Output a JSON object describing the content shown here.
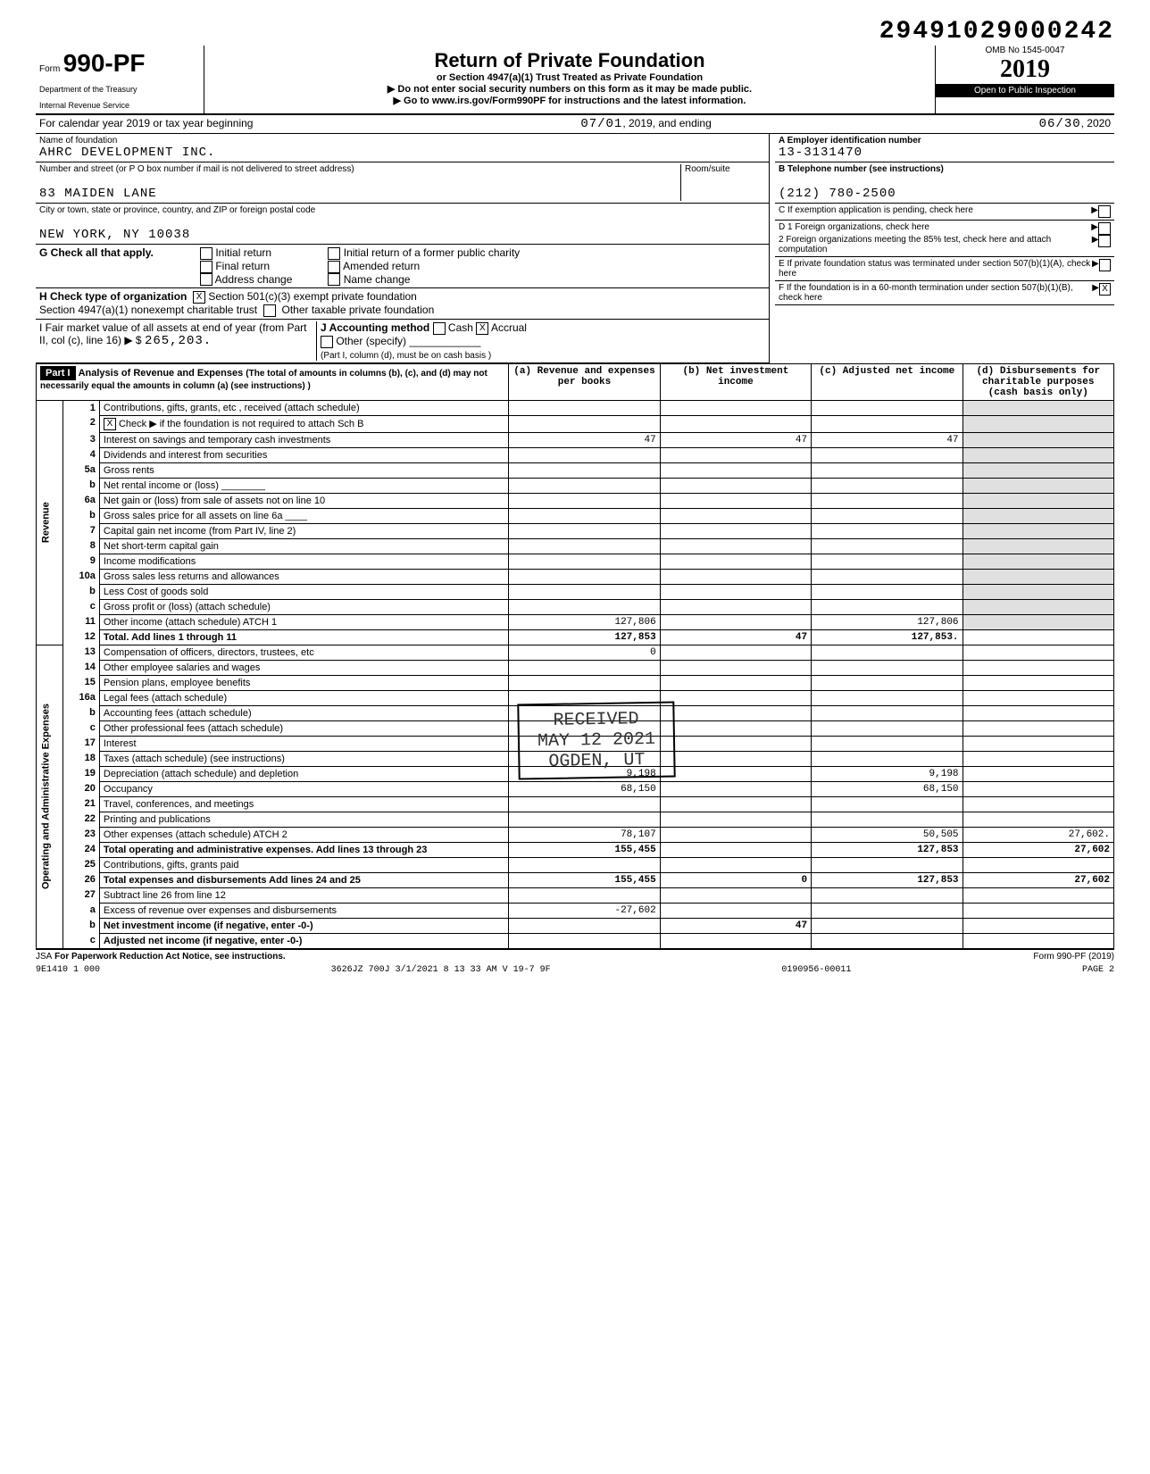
{
  "doc_id": "29491029000242",
  "form": {
    "number": "990-PF",
    "prefix": "Form",
    "dept1": "Department of the Treasury",
    "dept2": "Internal Revenue Service",
    "title": "Return of Private Foundation",
    "sub1": "or Section 4947(a)(1) Trust Treated as Private Foundation",
    "sub2": "▶ Do not enter social security numbers on this form as it may be made public.",
    "sub3": "▶ Go to www.irs.gov/Form990PF for instructions and the latest information.",
    "omb": "OMB No 1545-0047",
    "year": "2019",
    "open": "Open to Public Inspection"
  },
  "period": {
    "label_begin": "For calendar year 2019 or tax year beginning",
    "begin": "07/01",
    "mid": ", 2019, and ending",
    "end": "06/30",
    "end_year": ", 2020"
  },
  "foundation": {
    "name_label": "Name of foundation",
    "name": "AHRC DEVELOPMENT INC.",
    "addr_label": "Number and street (or P O box number if mail is not delivered to street address)",
    "room_label": "Room/suite",
    "street": "83 MAIDEN LANE",
    "city_label": "City or town, state or province, country, and ZIP or foreign postal code",
    "city": "NEW YORK, NY 10038"
  },
  "boxA": {
    "label": "A  Employer identification number",
    "value": "13-3131470"
  },
  "boxB": {
    "label": "B  Telephone number (see instructions)",
    "value": "(212) 780-2500"
  },
  "boxC": {
    "label": "C  If exemption application is pending, check here"
  },
  "boxD": {
    "d1": "D 1  Foreign organizations, check here",
    "d2": "2  Foreign organizations meeting the 85% test, check here and attach computation"
  },
  "boxE": {
    "label": "E  If private foundation status was terminated under section 507(b)(1)(A), check here"
  },
  "boxF": {
    "label": "F  If the foundation is in a 60-month termination under section 507(b)(1)(B), check here",
    "checked": "X"
  },
  "g": {
    "label": "G  Check all that apply.",
    "opts": [
      "Initial return",
      "Final return",
      "Address change",
      "Initial return of a former public charity",
      "Amended return",
      "Name change"
    ]
  },
  "h": {
    "label": "H  Check type of organization",
    "opt1": "Section 501(c)(3) exempt private foundation",
    "opt1_checked": "X",
    "opt2": "Section 4947(a)(1) nonexempt charitable trust",
    "opt3": "Other taxable private foundation"
  },
  "i": {
    "label": "I   Fair market value of all assets at end of year  (from Part II, col (c), line 16) ▶ $",
    "value": "265,203."
  },
  "j": {
    "label": "J  Accounting method",
    "cash": "Cash",
    "accrual": "Accrual",
    "accrual_checked": "X",
    "other": "Other (specify)",
    "note": "(Part I, column (d), must be on cash basis )"
  },
  "part1": {
    "tag": "Part I",
    "title": "Analysis of Revenue and Expenses",
    "note": "(The total of amounts in columns (b), (c), and (d) may not necessarily equal the amounts in column (a) (see instructions) )",
    "cols": {
      "a": "(a) Revenue and expenses per books",
      "b": "(b) Net investment income",
      "c": "(c) Adjusted net income",
      "d": "(d) Disbursements for charitable purposes (cash basis only)"
    }
  },
  "vert": {
    "revenue": "Revenue",
    "expenses": "Operating and Administrative Expenses"
  },
  "lines": [
    {
      "n": "1",
      "label": "Contributions, gifts, grants, etc , received (attach schedule)"
    },
    {
      "n": "2",
      "label": "Check ▶       if the foundation is not required to attach Sch B",
      "chk": "X"
    },
    {
      "n": "3",
      "label": "Interest on savings and temporary cash investments",
      "a": "47",
      "b": "47",
      "c": "47"
    },
    {
      "n": "4",
      "label": "Dividends and interest from securities"
    },
    {
      "n": "5a",
      "label": "Gross rents"
    },
    {
      "n": "b",
      "label": "Net rental income or (loss) ________"
    },
    {
      "n": "6a",
      "label": "Net gain or (loss) from sale of assets not on line 10"
    },
    {
      "n": "b",
      "label": "Gross sales price for all assets on line 6a ____"
    },
    {
      "n": "7",
      "label": "Capital gain net income (from Part IV, line 2)"
    },
    {
      "n": "8",
      "label": "Net short-term capital gain"
    },
    {
      "n": "9",
      "label": "Income modifications"
    },
    {
      "n": "10a",
      "label": "Gross sales less returns and allowances"
    },
    {
      "n": "b",
      "label": "Less Cost of goods sold"
    },
    {
      "n": "c",
      "label": "Gross profit or (loss) (attach schedule)"
    },
    {
      "n": "11",
      "label": "Other income (attach schedule) ATCH 1",
      "a": "127,806",
      "c": "127,806"
    },
    {
      "n": "12",
      "label": "Total. Add lines 1 through 11",
      "a": "127,853",
      "b": "47",
      "c": "127,853.",
      "bold": true
    },
    {
      "n": "13",
      "label": "Compensation of officers, directors, trustees, etc",
      "a": "0"
    },
    {
      "n": "14",
      "label": "Other employee salaries and wages"
    },
    {
      "n": "15",
      "label": "Pension plans, employee benefits"
    },
    {
      "n": "16a",
      "label": "Legal fees (attach schedule)"
    },
    {
      "n": "b",
      "label": "Accounting fees (attach schedule)"
    },
    {
      "n": "c",
      "label": "Other professional fees (attach schedule)"
    },
    {
      "n": "17",
      "label": "Interest"
    },
    {
      "n": "18",
      "label": "Taxes (attach schedule) (see instructions)"
    },
    {
      "n": "19",
      "label": "Depreciation (attach schedule) and depletion",
      "a": "9,198",
      "c": "9,198"
    },
    {
      "n": "20",
      "label": "Occupancy",
      "a": "68,150",
      "c": "68,150"
    },
    {
      "n": "21",
      "label": "Travel, conferences, and meetings"
    },
    {
      "n": "22",
      "label": "Printing and publications"
    },
    {
      "n": "23",
      "label": "Other expenses (attach schedule) ATCH 2",
      "a": "78,107",
      "c": "50,505",
      "d": "27,602."
    },
    {
      "n": "24",
      "label": "Total operating and administrative expenses. Add lines 13 through 23",
      "a": "155,455",
      "c": "127,853",
      "d": "27,602",
      "bold": true
    },
    {
      "n": "25",
      "label": "Contributions, gifts, grants paid"
    },
    {
      "n": "26",
      "label": "Total expenses and disbursements Add lines 24 and 25",
      "a": "155,455",
      "b": "0",
      "c": "127,853",
      "d": "27,602",
      "bold": true
    },
    {
      "n": "27",
      "label": "Subtract line 26 from line 12"
    },
    {
      "n": "a",
      "label": "Excess of revenue over expenses and disbursements",
      "a": "-27,602"
    },
    {
      "n": "b",
      "label": "Net investment income (if negative, enter -0-)",
      "b": "47",
      "bold": true
    },
    {
      "n": "c",
      "label": "Adjusted net income (if negative, enter -0-)",
      "bold": true
    }
  ],
  "stamp": {
    "l1": "RECEIVED",
    "l2": "MAY 12 2021",
    "l3": "OGDEN, UT"
  },
  "footer": {
    "paperwork": "For Paperwork Reduction Act Notice, see instructions.",
    "jsa": "JSA",
    "code1": "9E1410 1 000",
    "code2": "3626JZ 700J 3/1/2021   8 13 33 AM   V 19-7 9F",
    "client": "0190956-00011",
    "form": "Form 990-PF (2019)",
    "page": "PAGE 2"
  }
}
